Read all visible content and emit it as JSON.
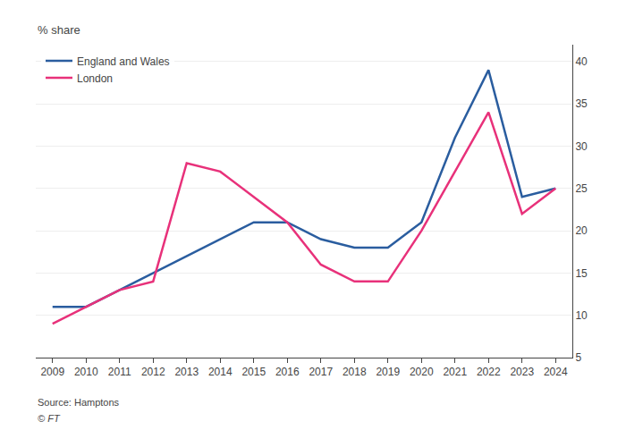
{
  "chart_data": {
    "type": "line",
    "ylabel": "% share",
    "x": [
      2009,
      2010,
      2011,
      2012,
      2013,
      2014,
      2015,
      2016,
      2017,
      2018,
      2019,
      2020,
      2021,
      2022,
      2023,
      2024
    ],
    "series": [
      {
        "name": "England and Wales",
        "color": "#2a5d9f",
        "values": [
          11,
          11,
          13,
          15,
          17,
          19,
          21,
          21,
          19,
          18,
          18,
          21,
          31,
          39,
          24,
          25
        ]
      },
      {
        "name": "London",
        "color": "#e8317a",
        "values": [
          9,
          11,
          13,
          14,
          28,
          27,
          24,
          21,
          16,
          14,
          14,
          20,
          27,
          34,
          22,
          25
        ]
      }
    ],
    "xlim": [
      2008.5,
      2024.5
    ],
    "xticks": [
      2009,
      2010,
      2011,
      2012,
      2013,
      2014,
      2015,
      2016,
      2017,
      2018,
      2019,
      2020,
      2021,
      2022,
      2023,
      2024
    ],
    "ylim": [
      5,
      42
    ],
    "yticks": [
      5,
      10,
      15,
      20,
      25,
      30,
      35,
      40
    ],
    "grid": "y",
    "legend": "upper left",
    "annotations": [
      "Source: Hamptons",
      "© FT"
    ]
  }
}
